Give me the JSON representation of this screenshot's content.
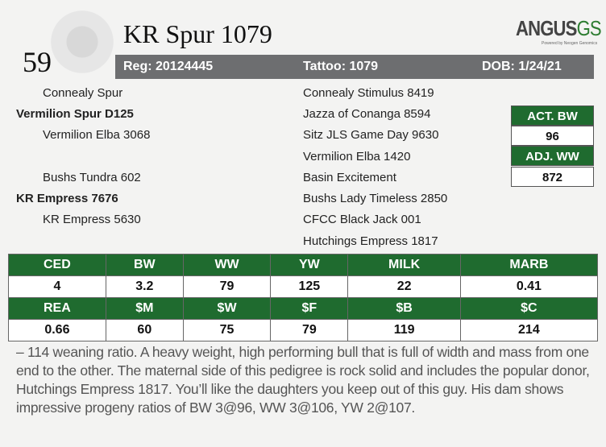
{
  "lot": "59",
  "title": "KR Spur 1079",
  "logo": {
    "brand": "ANGUS",
    "suffix": "GS",
    "tagline": "Powered by Neogen Genomics"
  },
  "info_bar": {
    "reg": "Reg: 20124445",
    "tattoo": "Tattoo: 1079",
    "dob": "DOB: 1/24/21"
  },
  "pedigree": {
    "sire_sire": "Connealy Spur",
    "sire": "Vermilion Spur D125",
    "sire_dam": "Vermilion Elba 3068",
    "dam_sire": "Bushs Tundra 602",
    "dam": "KR Empress 7676",
    "dam_dam": "KR Empress 5630",
    "great": [
      "Connealy Stimulus 8419",
      "Jazza of Conanga 8594",
      "Sitz JLS Game Day 9630",
      "Vermilion Elba 1420",
      "Basin Excitement",
      "Bushs Lady Timeless 2850",
      "CFCC Black Jack 001",
      "Hutchings Empress 1817"
    ]
  },
  "actuals": {
    "act_bw_label": "ACT. BW",
    "act_bw": "96",
    "adj_ww_label": "ADJ. WW",
    "adj_ww": "872"
  },
  "epds": {
    "row1_headers": [
      "CED",
      "BW",
      "WW",
      "YW",
      "MILK",
      "MARB"
    ],
    "row1_values": [
      "4",
      "3.2",
      "79",
      "125",
      "22",
      "0.41"
    ],
    "row2_headers": [
      "REA",
      "$M",
      "$W",
      "$F",
      "$B",
      "$C"
    ],
    "row2_values": [
      "0.66",
      "60",
      "75",
      "79",
      "119",
      "214"
    ]
  },
  "description": "– 114 weaning ratio. A heavy weight, high performing bull that is full of width and mass from one end to the other. The maternal side of this pedigree is rock solid and includes the popular donor, Hutchings Empress 1817.  You’ll like the daughters you keep out of this guy. His dam shows impressive progeny ratios of BW 3@96, WW 3@106, YW 2@107.",
  "colors": {
    "green": "#1f6b2f",
    "gray": "#6d6e70"
  }
}
